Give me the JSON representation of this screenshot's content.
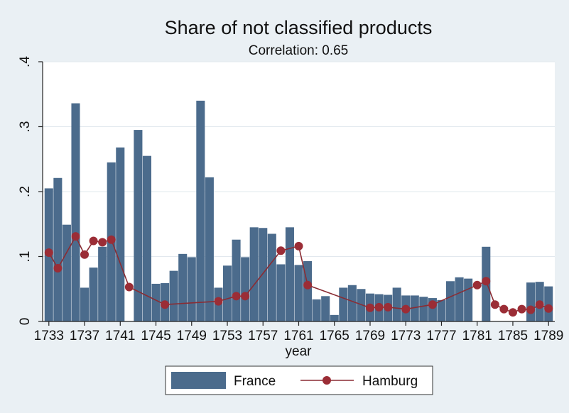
{
  "chart_data": {
    "type": "bar+line",
    "title": "Share of not classified products",
    "subtitle": "Correlation: 0.65",
    "xlabel": "year",
    "ylabel": "",
    "xlim": [
      1732.3,
      1789.7
    ],
    "ylim": [
      0,
      0.4
    ],
    "y_ticks": [
      {
        "value": 0,
        "label": "0"
      },
      {
        "value": 0.1,
        "label": ".1"
      },
      {
        "value": 0.2,
        "label": ".2"
      },
      {
        "value": 0.3,
        "label": ".3"
      },
      {
        "value": 0.4,
        "label": ".4"
      }
    ],
    "x_ticks": [
      {
        "value": 1733,
        "label": "1733"
      },
      {
        "value": 1737,
        "label": "1737"
      },
      {
        "value": 1741,
        "label": "1741"
      },
      {
        "value": 1745,
        "label": "1745"
      },
      {
        "value": 1749,
        "label": "1749"
      },
      {
        "value": 1753,
        "label": "1753"
      },
      {
        "value": 1757,
        "label": "1757"
      },
      {
        "value": 1761,
        "label": "1761"
      },
      {
        "value": 1765,
        "label": "1765"
      },
      {
        "value": 1769,
        "label": "1769"
      },
      {
        "value": 1773,
        "label": "1773"
      },
      {
        "value": 1777,
        "label": "1777"
      },
      {
        "value": 1781,
        "label": "1781"
      },
      {
        "value": 1785,
        "label": "1785"
      },
      {
        "value": 1789,
        "label": "1789"
      }
    ],
    "grid": "horizontal",
    "legend_position": "bottom",
    "colors": {
      "bar": "#4b6b8c",
      "line": "#8a2c33",
      "marker": "#9b2d36",
      "plot_bg": "#ffffff",
      "page_bg": "#eaf0f4",
      "grid": "#e2e8ee"
    },
    "series": [
      {
        "name": "France",
        "type": "bar",
        "x": [
          1733,
          1734,
          1735,
          1736,
          1737,
          1738,
          1739,
          1740,
          1741,
          1743,
          1744,
          1745,
          1746,
          1747,
          1748,
          1749,
          1750,
          1751,
          1752,
          1753,
          1754,
          1755,
          1756,
          1757,
          1758,
          1759,
          1760,
          1761,
          1762,
          1763,
          1764,
          1765,
          1766,
          1767,
          1768,
          1769,
          1770,
          1771,
          1772,
          1773,
          1774,
          1775,
          1776,
          1777,
          1778,
          1779,
          1780,
          1782,
          1787,
          1788,
          1789
        ],
        "values": [
          0.205,
          0.221,
          0.149,
          0.336,
          0.052,
          0.083,
          0.115,
          0.245,
          0.268,
          0.295,
          0.255,
          0.058,
          0.059,
          0.078,
          0.104,
          0.099,
          0.34,
          0.222,
          0.052,
          0.086,
          0.126,
          0.099,
          0.145,
          0.144,
          0.135,
          0.088,
          0.145,
          0.087,
          0.093,
          0.034,
          0.039,
          0.01,
          0.052,
          0.056,
          0.05,
          0.043,
          0.042,
          0.041,
          0.052,
          0.04,
          0.04,
          0.038,
          0.036,
          0.033,
          0.062,
          0.068,
          0.066,
          0.115,
          0.06,
          0.061,
          0.054
        ]
      },
      {
        "name": "Hamburg",
        "type": "line",
        "x": [
          1733,
          1734,
          1736,
          1737,
          1738,
          1739,
          1740,
          1742,
          1746,
          1752,
          1754,
          1755,
          1759,
          1761,
          1762,
          1769,
          1770,
          1771,
          1773,
          1776,
          1781,
          1782,
          1783,
          1784,
          1785,
          1786,
          1787,
          1788,
          1789
        ],
        "values": [
          0.106,
          0.082,
          0.131,
          0.103,
          0.124,
          0.122,
          0.126,
          0.053,
          0.026,
          0.031,
          0.039,
          0.039,
          0.109,
          0.116,
          0.056,
          0.021,
          0.022,
          0.022,
          0.019,
          0.026,
          0.056,
          0.062,
          0.026,
          0.019,
          0.014,
          0.019,
          0.018,
          0.026,
          0.02
        ]
      }
    ]
  }
}
